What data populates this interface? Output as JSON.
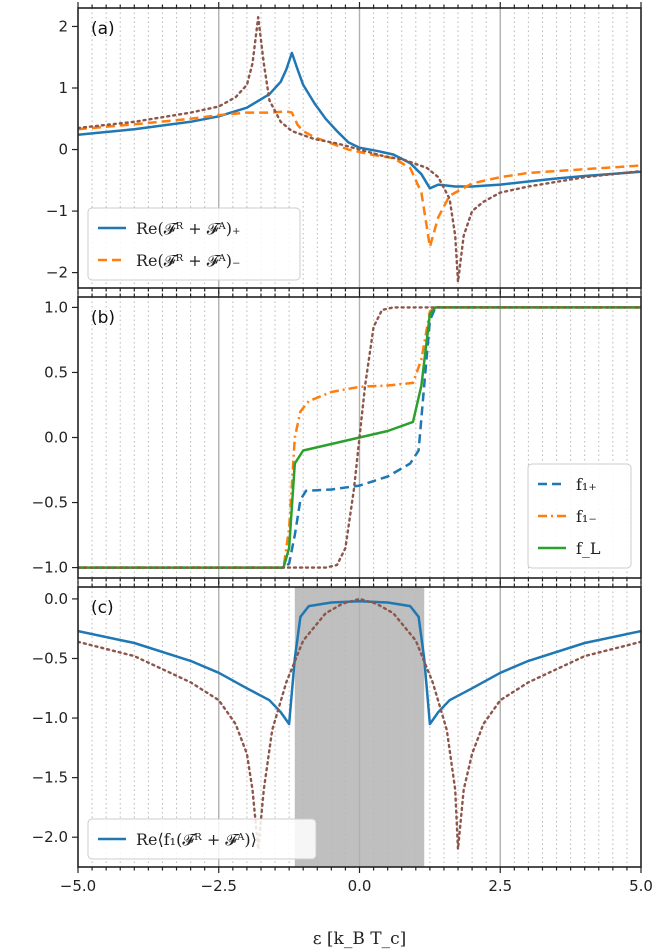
{
  "chart_data": [
    {
      "type": "line",
      "panel_label": "(a)",
      "xlim": [
        -5,
        5
      ],
      "ylim": [
        -2.25,
        2.3
      ],
      "x_ticks": [
        -5,
        -2.5,
        0,
        2.5,
        5
      ],
      "y_ticks": [
        -2,
        -1,
        0,
        1,
        2
      ],
      "y_tick_labels": [
        "−2",
        "−1",
        "0",
        "1",
        "2"
      ],
      "legend_position": "lower-left",
      "legend": [
        {
          "label": "Re(𝓕ᴿ + 𝓕ᴬ)₊",
          "series": 0
        },
        {
          "label": "Re(𝓕ᴿ + 𝓕ᴬ)₋",
          "series": 1
        }
      ],
      "series": [
        {
          "name": "Re(𝓕ᴿ + 𝓕ᴬ)₊",
          "color": "#1f77b4",
          "style": "solid",
          "points": [
            [
              -5,
              0.24
            ],
            [
              -4,
              0.33
            ],
            [
              -3,
              0.45
            ],
            [
              -2.5,
              0.54
            ],
            [
              -2,
              0.68
            ],
            [
              -1.6,
              0.9
            ],
            [
              -1.4,
              1.1
            ],
            [
              -1.3,
              1.3
            ],
            [
              -1.2,
              1.57
            ],
            [
              -1.1,
              1.3
            ],
            [
              -1.0,
              1.05
            ],
            [
              -0.8,
              0.75
            ],
            [
              -0.6,
              0.5
            ],
            [
              -0.4,
              0.3
            ],
            [
              -0.2,
              0.12
            ],
            [
              0,
              0.03
            ],
            [
              0.3,
              -0.02
            ],
            [
              0.6,
              -0.08
            ],
            [
              0.9,
              -0.22
            ],
            [
              1.1,
              -0.4
            ],
            [
              1.25,
              -0.63
            ],
            [
              1.4,
              -0.57
            ],
            [
              1.7,
              -0.6
            ],
            [
              2.0,
              -0.6
            ],
            [
              2.5,
              -0.57
            ],
            [
              3,
              -0.52
            ],
            [
              3.5,
              -0.47
            ],
            [
              4,
              -0.43
            ],
            [
              5,
              -0.36
            ]
          ]
        },
        {
          "name": "Re(𝓕ᴿ + 𝓕ᴬ)₋",
          "color": "#ff7f0e",
          "style": "dashed",
          "points": [
            [
              -5,
              0.33
            ],
            [
              -4,
              0.41
            ],
            [
              -3,
              0.5
            ],
            [
              -2.5,
              0.56
            ],
            [
              -2,
              0.6
            ],
            [
              -1.6,
              0.6
            ],
            [
              -1.3,
              0.62
            ],
            [
              -1.2,
              0.6
            ],
            [
              -1.1,
              0.4
            ],
            [
              -1.0,
              0.3
            ],
            [
              -0.8,
              0.2
            ],
            [
              -0.5,
              0.1
            ],
            [
              -0.2,
              0.0
            ],
            [
              0.2,
              -0.08
            ],
            [
              0.6,
              -0.14
            ],
            [
              0.9,
              -0.3
            ],
            [
              1.1,
              -0.7
            ],
            [
              1.25,
              -1.58
            ],
            [
              1.4,
              -1.1
            ],
            [
              1.6,
              -0.75
            ],
            [
              2,
              -0.55
            ],
            [
              2.5,
              -0.45
            ],
            [
              3,
              -0.38
            ],
            [
              4,
              -0.32
            ],
            [
              5,
              -0.26
            ]
          ]
        },
        {
          "name": "",
          "color": "#8c564b",
          "style": "dotted",
          "points": [
            [
              -5,
              0.35
            ],
            [
              -4,
              0.45
            ],
            [
              -3,
              0.6
            ],
            [
              -2.5,
              0.7
            ],
            [
              -2.2,
              0.85
            ],
            [
              -2.0,
              1.05
            ],
            [
              -1.9,
              1.4
            ],
            [
              -1.8,
              2.15
            ],
            [
              -1.7,
              1.4
            ],
            [
              -1.6,
              0.8
            ],
            [
              -1.4,
              0.45
            ],
            [
              -1.2,
              0.3
            ],
            [
              -0.8,
              0.17
            ],
            [
              -0.4,
              0.1
            ],
            [
              0,
              0.0
            ],
            [
              0.4,
              -0.1
            ],
            [
              0.8,
              -0.17
            ],
            [
              1.2,
              -0.3
            ],
            [
              1.4,
              -0.45
            ],
            [
              1.6,
              -0.8
            ],
            [
              1.7,
              -1.4
            ],
            [
              1.75,
              -2.15
            ],
            [
              1.85,
              -1.4
            ],
            [
              2.0,
              -1.0
            ],
            [
              2.2,
              -0.85
            ],
            [
              2.5,
              -0.7
            ],
            [
              3,
              -0.6
            ],
            [
              4,
              -0.45
            ],
            [
              5,
              -0.35
            ]
          ]
        }
      ]
    },
    {
      "type": "line",
      "panel_label": "(b)",
      "xlim": [
        -5,
        5
      ],
      "ylim": [
        -1.08,
        1.08
      ],
      "x_ticks": [
        -5,
        -2.5,
        0,
        2.5,
        5
      ],
      "y_ticks": [
        -1,
        -0.5,
        0,
        0.5,
        1
      ],
      "y_tick_labels": [
        "−1.0",
        "−0.5",
        "0.0",
        "0.5",
        "1.0"
      ],
      "legend_position": "lower-right",
      "legend": [
        {
          "label": "f₁₊",
          "series": 0
        },
        {
          "label": "f₁₋",
          "series": 1
        },
        {
          "label": "f_L",
          "series": 2
        }
      ],
      "series": [
        {
          "name": "f₁₊",
          "color": "#1f77b4",
          "style": "dashed",
          "points": [
            [
              -5,
              -1
            ],
            [
              -1.35,
              -1
            ],
            [
              -1.25,
              -0.97
            ],
            [
              -1.15,
              -0.75
            ],
            [
              -1.05,
              -0.48
            ],
            [
              -0.95,
              -0.41
            ],
            [
              -0.5,
              -0.4
            ],
            [
              0,
              -0.37
            ],
            [
              0.5,
              -0.3
            ],
            [
              0.9,
              -0.2
            ],
            [
              1.05,
              -0.1
            ],
            [
              1.15,
              0.4
            ],
            [
              1.25,
              0.9
            ],
            [
              1.35,
              1.0
            ],
            [
              5,
              1.0
            ]
          ]
        },
        {
          "name": "f₁₋",
          "color": "#ff7f0e",
          "style": "dashdot",
          "points": [
            [
              -5,
              -1
            ],
            [
              -1.35,
              -1
            ],
            [
              -1.25,
              -0.7
            ],
            [
              -1.15,
              0.0
            ],
            [
              -1.05,
              0.2
            ],
            [
              -0.9,
              0.28
            ],
            [
              -0.5,
              0.35
            ],
            [
              0,
              0.39
            ],
            [
              0.5,
              0.4
            ],
            [
              0.95,
              0.42
            ],
            [
              1.1,
              0.6
            ],
            [
              1.25,
              0.97
            ],
            [
              1.35,
              1.0
            ],
            [
              5,
              1.0
            ]
          ]
        },
        {
          "name": "f_L",
          "color": "#2ca02c",
          "style": "solid",
          "points": [
            [
              -5,
              -1
            ],
            [
              -1.35,
              -1
            ],
            [
              -1.25,
              -0.85
            ],
            [
              -1.15,
              -0.2
            ],
            [
              -1.0,
              -0.1
            ],
            [
              -0.5,
              -0.05
            ],
            [
              0,
              0.0
            ],
            [
              0.5,
              0.05
            ],
            [
              0.95,
              0.12
            ],
            [
              1.1,
              0.4
            ],
            [
              1.25,
              0.95
            ],
            [
              1.35,
              1.0
            ],
            [
              5,
              1.0
            ]
          ]
        },
        {
          "name": "",
          "color": "#8c564b",
          "style": "dotted",
          "points": [
            [
              -5,
              -1
            ],
            [
              -0.6,
              -1
            ],
            [
              -0.4,
              -0.98
            ],
            [
              -0.25,
              -0.85
            ],
            [
              -0.1,
              -0.4
            ],
            [
              0,
              0.0
            ],
            [
              0.1,
              0.4
            ],
            [
              0.25,
              0.85
            ],
            [
              0.4,
              0.98
            ],
            [
              0.6,
              1
            ],
            [
              5,
              1
            ]
          ]
        }
      ]
    },
    {
      "type": "line",
      "panel_label": "(c)",
      "xlim": [
        -5,
        5
      ],
      "ylim": [
        -2.25,
        0.1
      ],
      "x_ticks": [
        -5,
        -2.5,
        0,
        2.5,
        5
      ],
      "x_tick_labels": [
        "−5.0",
        "−2.5",
        "0.0",
        "2.5",
        "5.0"
      ],
      "y_ticks": [
        0,
        -0.5,
        -1,
        -1.5,
        -2
      ],
      "y_tick_labels": [
        "0.0",
        "−0.5",
        "−1.0",
        "−1.5",
        "−2.0"
      ],
      "xlabel": "ε [k_B T_c]",
      "shaded_region": [
        -1.15,
        1.15
      ],
      "legend_position": "lower-left",
      "legend": [
        {
          "label": "Re⟨f₁(𝓕ᴿ + 𝓕ᴬ)⟩",
          "series": 0
        }
      ],
      "series": [
        {
          "name": "Re⟨f₁(𝓕ᴿ + 𝓕ᴬ)⟩",
          "color": "#1f77b4",
          "style": "solid",
          "points": [
            [
              -5,
              -0.27
            ],
            [
              -4,
              -0.37
            ],
            [
              -3,
              -0.52
            ],
            [
              -2.5,
              -0.62
            ],
            [
              -2,
              -0.75
            ],
            [
              -1.6,
              -0.85
            ],
            [
              -1.4,
              -0.95
            ],
            [
              -1.25,
              -1.05
            ],
            [
              -1.15,
              -0.5
            ],
            [
              -1.05,
              -0.15
            ],
            [
              -0.9,
              -0.06
            ],
            [
              -0.5,
              -0.03
            ],
            [
              0,
              -0.02
            ],
            [
              0.5,
              -0.03
            ],
            [
              0.9,
              -0.06
            ],
            [
              1.05,
              -0.15
            ],
            [
              1.15,
              -0.5
            ],
            [
              1.25,
              -1.05
            ],
            [
              1.4,
              -0.95
            ],
            [
              1.6,
              -0.85
            ],
            [
              2,
              -0.75
            ],
            [
              2.5,
              -0.62
            ],
            [
              3,
              -0.52
            ],
            [
              4,
              -0.37
            ],
            [
              5,
              -0.27
            ]
          ]
        },
        {
          "name": "",
          "color": "#8c564b",
          "style": "dotted",
          "points": [
            [
              -5,
              -0.36
            ],
            [
              -4,
              -0.48
            ],
            [
              -3,
              -0.7
            ],
            [
              -2.5,
              -0.85
            ],
            [
              -2.2,
              -1.05
            ],
            [
              -2.0,
              -1.3
            ],
            [
              -1.9,
              -1.6
            ],
            [
              -1.8,
              -2.1
            ],
            [
              -1.7,
              -1.6
            ],
            [
              -1.55,
              -1.1
            ],
            [
              -1.3,
              -0.7
            ],
            [
              -1.0,
              -0.35
            ],
            [
              -0.6,
              -0.12
            ],
            [
              -0.3,
              -0.04
            ],
            [
              0,
              0.0
            ],
            [
              0.3,
              -0.04
            ],
            [
              0.6,
              -0.12
            ],
            [
              1.0,
              -0.35
            ],
            [
              1.3,
              -0.7
            ],
            [
              1.55,
              -1.1
            ],
            [
              1.7,
              -1.6
            ],
            [
              1.75,
              -2.1
            ],
            [
              1.85,
              -1.6
            ],
            [
              2.0,
              -1.3
            ],
            [
              2.2,
              -1.05
            ],
            [
              2.5,
              -0.85
            ],
            [
              3,
              -0.7
            ],
            [
              4,
              -0.48
            ],
            [
              5,
              -0.36
            ]
          ]
        }
      ]
    }
  ]
}
